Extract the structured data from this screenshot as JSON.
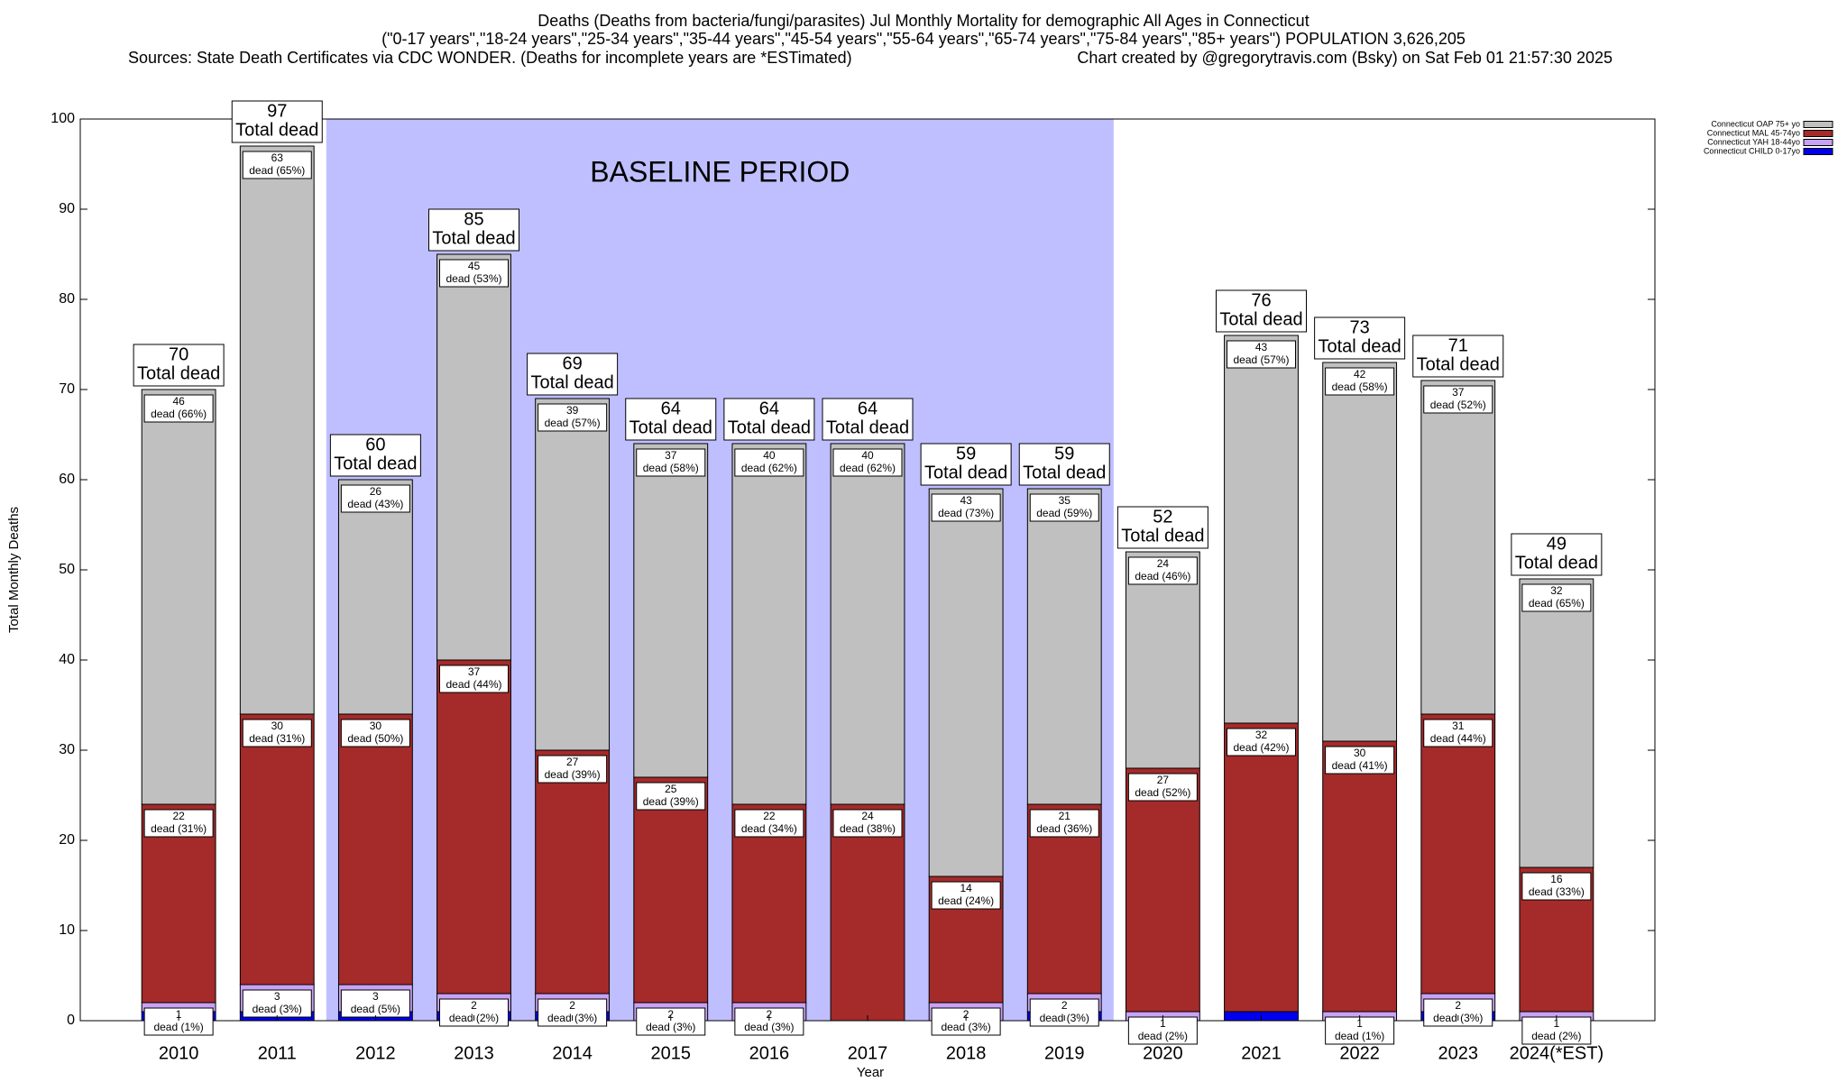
{
  "chart_data": {
    "type": "stacked_bar",
    "title": "Deaths (Deaths from bacteria/fungi/parasites) Jul Monthly Mortality for demographic All Ages in Connecticut",
    "subtitle": "(\"0-17 years\",\"18-24 years\",\"25-34 years\",\"35-44 years\",\"45-54 years\",\"55-64 years\",\"65-74 years\",\"75-84 years\",\"85+ years\") POPULATION 3,626,205",
    "source": "Sources: State Death Certificates via CDC WONDER. (Deaths for incomplete years are *ESTimated)",
    "credit": "Chart created by @gregorytravis.com (Bsky) on Sat Feb 01 21:57:30 2025",
    "x_label": "Year",
    "y_label": "Total Monthly Deaths",
    "categories": [
      "2010",
      "2011",
      "2012",
      "2013",
      "2014",
      "2015",
      "2016",
      "2017",
      "2018",
      "2019",
      "2020",
      "2021",
      "2022",
      "2023",
      "2024(*EST)"
    ],
    "series": [
      {
        "name": "Connecticut CHILD 0-17yo",
        "color": "#0000ee",
        "values": [
          1,
          1,
          1,
          1,
          1,
          0,
          0,
          0,
          0,
          1,
          0,
          1,
          0,
          1,
          0
        ]
      },
      {
        "name": "Connecticut YAH 18-44yo",
        "color": "#c8a2f4",
        "values": [
          1,
          3,
          3,
          2,
          2,
          2,
          2,
          0,
          2,
          2,
          1,
          0,
          1,
          2,
          1
        ],
        "percent_labels": [
          "dead (1%)",
          "dead (3%)",
          "dead (5%)",
          "dead (2%)",
          "dead (3%)",
          "dead (3%)",
          "dead (3%)",
          null,
          "dead (3%)",
          "dead (3%)",
          "dead (2%)",
          null,
          "dead (1%)",
          "dead (3%)",
          "dead (2%)"
        ]
      },
      {
        "name": "Connecticut MAL 45-74yo",
        "color": "#a52a2a",
        "values": [
          22,
          30,
          30,
          37,
          27,
          25,
          22,
          24,
          14,
          21,
          27,
          32,
          30,
          31,
          16
        ],
        "percent_labels": [
          "dead (31%)",
          "dead (31%)",
          "dead (50%)",
          "dead (44%)",
          "dead (39%)",
          "dead (39%)",
          "dead (34%)",
          "dead (38%)",
          "dead (24%)",
          "dead (36%)",
          "dead (52%)",
          "dead (42%)",
          "dead (41%)",
          "dead (44%)",
          "dead (33%)"
        ]
      },
      {
        "name": "Connecticut OAP 75+ yo",
        "color": "#c0c0c0",
        "values": [
          46,
          63,
          26,
          45,
          39,
          37,
          40,
          40,
          43,
          35,
          24,
          43,
          42,
          37,
          32
        ],
        "percent_labels": [
          "dead (66%)",
          "dead (65%)",
          "dead (43%)",
          "dead (53%)",
          "dead (57%)",
          "dead (58%)",
          "dead (62%)",
          "dead (62%)",
          "dead (73%)",
          "dead (59%)",
          "dead (46%)",
          "dead (57%)",
          "dead (58%)",
          "dead (52%)",
          "dead (65%)"
        ]
      }
    ],
    "totals": [
      70,
      97,
      60,
      85,
      69,
      64,
      64,
      64,
      59,
      59,
      52,
      76,
      73,
      71,
      49
    ],
    "total_label": "Total dead",
    "baseline": {
      "label": "BASELINE PERIOD",
      "start": "2012",
      "end": "2019",
      "color": "#bfbfff"
    },
    "ylim": [
      0,
      100
    ],
    "yticks": [
      0,
      10,
      20,
      30,
      40,
      50,
      60,
      70,
      80,
      90,
      100
    ],
    "legend": "upper right"
  }
}
